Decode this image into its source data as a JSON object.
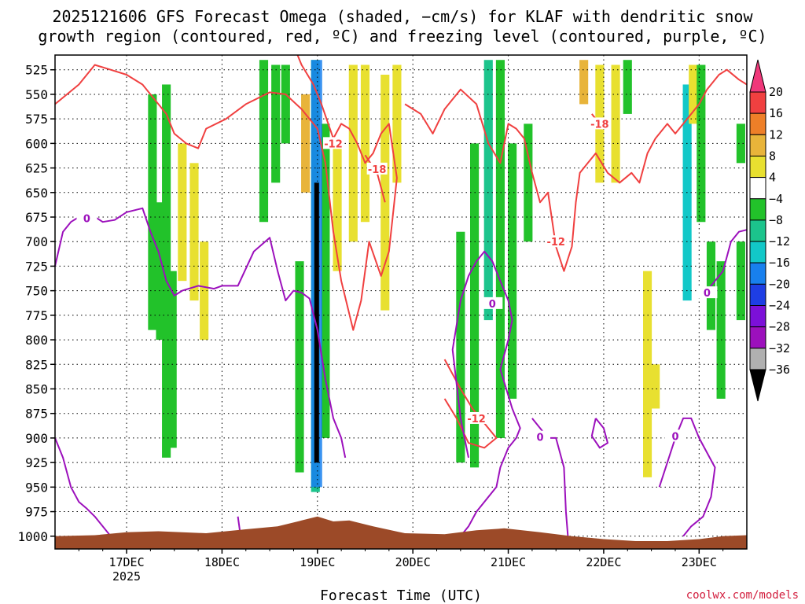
{
  "chart_data": {
    "type": "heatmap",
    "title_lines": [
      "2025121606 GFS Forecast Omega (shaded, −cm/s) for KLAF with dendritic snow",
      "growth region (contoured, red, ºC) and freezing level (contoured, purple, ºC)"
    ],
    "xlabel": "Forecast Time (UTC)",
    "credit": "coolwx.com/models",
    "y_axis": {
      "ticks": [
        525,
        550,
        575,
        600,
        625,
        650,
        675,
        700,
        725,
        750,
        775,
        800,
        825,
        850,
        875,
        900,
        925,
        950,
        975,
        1000
      ],
      "range": [
        510,
        1013
      ]
    },
    "x_axis": {
      "range_hours": [
        -18,
        156
      ],
      "ticks": [
        {
          "hour": 0,
          "label": "17DEC",
          "sub": "2025"
        },
        {
          "hour": 24,
          "label": "18DEC",
          "sub": ""
        },
        {
          "hour": 48,
          "label": "19DEC",
          "sub": ""
        },
        {
          "hour": 72,
          "label": "20DEC",
          "sub": ""
        },
        {
          "hour": 96,
          "label": "21DEC",
          "sub": ""
        },
        {
          "hour": 120,
          "label": "22DEC",
          "sub": ""
        },
        {
          "hour": 144,
          "label": "23DEC",
          "sub": ""
        }
      ]
    },
    "colorbar": {
      "labels": [
        "20",
        "16",
        "12",
        "8",
        "4",
        "−4",
        "−8",
        "−12",
        "−16",
        "−20",
        "−24",
        "−28",
        "−32",
        "−36"
      ],
      "colors": [
        "#f0387a",
        "#f04040",
        "#ee7f28",
        "#e8b43a",
        "#e8e030",
        "#ffffff",
        "#22c22a",
        "#1cc48c",
        "#12c8c8",
        "#1880ee",
        "#1e3ee4",
        "#7c10d8",
        "#9c10bc",
        "#b0b0b0",
        "#000000"
      ]
    },
    "omega_patches": [
      {
        "hour": 6.5,
        "p_top": 550,
        "p_bot": 790,
        "color": "#22c22a"
      },
      {
        "hour": 8.5,
        "p_top": 660,
        "p_bot": 800,
        "color": "#22c22a"
      },
      {
        "hour": 10,
        "p_top": 540,
        "p_bot": 920,
        "color": "#22c22a"
      },
      {
        "hour": 11.5,
        "p_top": 730,
        "p_bot": 910,
        "color": "#22c22a"
      },
      {
        "hour": 14,
        "p_top": 600,
        "p_bot": 740,
        "color": "#e8e030"
      },
      {
        "hour": 17,
        "p_top": 620,
        "p_bot": 760,
        "color": "#e8e030"
      },
      {
        "hour": 19.5,
        "p_top": 700,
        "p_bot": 800,
        "color": "#e8e030"
      },
      {
        "hour": 34.5,
        "p_top": 515,
        "p_bot": 680,
        "color": "#22c22a"
      },
      {
        "hour": 37.5,
        "p_top": 520,
        "p_bot": 640,
        "color": "#22c22a"
      },
      {
        "hour": 40,
        "p_top": 520,
        "p_bot": 600,
        "color": "#22c22a"
      },
      {
        "hour": 43.5,
        "p_top": 720,
        "p_bot": 935,
        "color": "#22c22a"
      },
      {
        "hour": 45,
        "p_top": 550,
        "p_bot": 650,
        "color": "#e8b43a"
      },
      {
        "hour": 47.5,
        "p_top": 515,
        "p_bot": 955,
        "color": "#1cc48c"
      },
      {
        "hour": 50,
        "p_top": 580,
        "p_bot": 900,
        "color": "#22c22a"
      },
      {
        "hour": 53,
        "p_top": 600,
        "p_bot": 730,
        "color": "#e8e030"
      },
      {
        "hour": 57,
        "p_top": 520,
        "p_bot": 700,
        "color": "#e8e030"
      },
      {
        "hour": 60,
        "p_top": 520,
        "p_bot": 680,
        "color": "#e8e030"
      },
      {
        "hour": 65,
        "p_top": 530,
        "p_bot": 770,
        "color": "#e8e030"
      },
      {
        "hour": 68,
        "p_top": 520,
        "p_bot": 640,
        "color": "#e8e030"
      },
      {
        "hour": 84,
        "p_top": 690,
        "p_bot": 925,
        "color": "#22c22a"
      },
      {
        "hour": 87.5,
        "p_top": 600,
        "p_bot": 930,
        "color": "#22c22a"
      },
      {
        "hour": 91,
        "p_top": 515,
        "p_bot": 780,
        "color": "#1cc48c"
      },
      {
        "hour": 94,
        "p_top": 515,
        "p_bot": 900,
        "color": "#22c22a"
      },
      {
        "hour": 97,
        "p_top": 600,
        "p_bot": 860,
        "color": "#22c22a"
      },
      {
        "hour": 101,
        "p_top": 580,
        "p_bot": 700,
        "color": "#22c22a"
      },
      {
        "hour": 115,
        "p_top": 515,
        "p_bot": 560,
        "color": "#e8b43a"
      },
      {
        "hour": 119,
        "p_top": 520,
        "p_bot": 640,
        "color": "#e8e030"
      },
      {
        "hour": 123,
        "p_top": 520,
        "p_bot": 640,
        "color": "#e8e030"
      },
      {
        "hour": 126,
        "p_top": 515,
        "p_bot": 570,
        "color": "#22c22a"
      },
      {
        "hour": 131,
        "p_top": 730,
        "p_bot": 940,
        "color": "#e8e030"
      },
      {
        "hour": 133,
        "p_top": 825,
        "p_bot": 870,
        "color": "#e8e030"
      },
      {
        "hour": 141,
        "p_top": 540,
        "p_bot": 760,
        "color": "#12c8c8"
      },
      {
        "hour": 142.5,
        "p_top": 520,
        "p_bot": 580,
        "color": "#e8e030"
      },
      {
        "hour": 144.5,
        "p_top": 520,
        "p_bot": 680,
        "color": "#22c22a"
      },
      {
        "hour": 147,
        "p_top": 700,
        "p_bot": 790,
        "color": "#22c22a"
      },
      {
        "hour": 149.5,
        "p_top": 720,
        "p_bot": 860,
        "color": "#22c22a"
      },
      {
        "hour": 154.5,
        "p_top": 580,
        "p_bot": 620,
        "color": "#22c22a"
      },
      {
        "hour": 154.5,
        "p_top": 700,
        "p_bot": 780,
        "color": "#22c22a"
      }
    ],
    "core_updraft": {
      "hour": 47.8,
      "p_top": 640,
      "p_bot": 925,
      "color": "#000000"
    },
    "dendritic_contours": [
      {
        "points": [
          [
            -18,
            560
          ],
          [
            -12,
            540
          ],
          [
            -8,
            520
          ],
          [
            -4,
            525
          ],
          [
            0,
            530
          ],
          [
            4,
            540
          ],
          [
            8,
            560
          ],
          [
            10,
            570
          ],
          [
            12,
            590
          ],
          [
            15,
            600
          ],
          [
            18,
            605
          ],
          [
            20,
            585
          ],
          [
            25,
            575
          ],
          [
            30,
            560
          ],
          [
            36,
            548
          ],
          [
            40,
            550
          ],
          [
            44,
            565
          ],
          [
            48,
            585
          ],
          [
            50,
            620
          ],
          [
            52,
            690
          ],
          [
            54,
            740
          ],
          [
            57,
            790
          ],
          [
            59,
            760
          ],
          [
            61,
            700
          ],
          [
            64,
            735
          ],
          [
            66,
            710
          ],
          [
            68,
            635
          ],
          [
            66,
            580
          ],
          [
            64,
            590
          ],
          [
            62,
            610
          ],
          [
            60,
            620
          ],
          [
            58,
            600
          ],
          [
            56,
            585
          ],
          [
            54,
            580
          ],
          [
            52,
            595
          ],
          [
            49,
            560
          ],
          [
            47,
            540
          ],
          [
            44,
            520
          ],
          [
            43,
            510
          ]
        ],
        "label": "-12",
        "label_at": [
          52,
          600
        ]
      },
      {
        "points": [
          [
            60,
            612
          ],
          [
            63,
            630
          ],
          [
            65,
            660
          ]
        ],
        "label": "-18",
        "label_at": [
          63,
          626
        ]
      },
      {
        "points": [
          [
            70,
            560
          ],
          [
            74,
            570
          ],
          [
            77,
            590
          ],
          [
            80,
            565
          ],
          [
            84,
            545
          ],
          [
            88,
            560
          ],
          [
            91,
            600
          ],
          [
            94,
            620
          ],
          [
            96,
            580
          ],
          [
            98,
            585
          ],
          [
            100,
            595
          ],
          [
            102,
            630
          ],
          [
            104,
            660
          ],
          [
            106,
            650
          ],
          [
            108,
            705
          ],
          [
            110,
            730
          ],
          [
            112,
            705
          ],
          [
            113,
            660
          ],
          [
            114,
            630
          ],
          [
            116,
            620
          ],
          [
            118,
            610
          ],
          [
            121,
            630
          ],
          [
            124,
            640
          ],
          [
            127,
            630
          ],
          [
            129,
            640
          ],
          [
            131,
            610
          ],
          [
            133,
            595
          ],
          [
            136,
            580
          ],
          [
            138,
            590
          ],
          [
            141,
            575
          ],
          [
            144,
            560
          ],
          [
            146,
            545
          ],
          [
            149,
            530
          ],
          [
            151,
            525
          ],
          [
            154,
            535
          ],
          [
            156,
            540
          ]
        ],
        "label": "-12",
        "label_at": [
          108,
          700
        ]
      },
      {
        "points": [
          [
            117,
            570
          ],
          [
            119,
            580
          ],
          [
            121,
            575
          ]
        ],
        "label": "-18",
        "label_at": [
          119,
          580
        ]
      },
      {
        "points": [
          [
            80,
            820
          ],
          [
            84,
            850
          ],
          [
            87,
            870
          ],
          [
            90,
            885
          ],
          [
            93,
            900
          ],
          [
            90,
            910
          ],
          [
            86,
            905
          ],
          [
            83,
            880
          ],
          [
            80,
            860
          ]
        ],
        "label": "-12",
        "label_at": [
          88,
          880
        ]
      }
    ],
    "freezing_contours": [
      {
        "points": [
          [
            -18,
            725
          ],
          [
            -16,
            690
          ],
          [
            -14,
            680
          ],
          [
            -12,
            675
          ],
          [
            -9,
            672
          ],
          [
            -6,
            680
          ],
          [
            -3,
            678
          ],
          [
            0,
            670
          ],
          [
            4,
            666
          ],
          [
            6,
            690
          ],
          [
            8,
            710
          ],
          [
            10,
            740
          ],
          [
            12,
            755
          ],
          [
            14,
            750
          ],
          [
            18,
            745
          ],
          [
            22,
            748
          ],
          [
            24,
            745
          ],
          [
            28,
            745
          ],
          [
            32,
            710
          ],
          [
            36,
            696
          ],
          [
            38,
            730
          ],
          [
            40,
            760
          ],
          [
            42,
            750
          ],
          [
            44,
            752
          ],
          [
            46,
            758
          ],
          [
            48,
            790
          ],
          [
            50,
            840
          ],
          [
            52,
            880
          ],
          [
            54,
            900
          ],
          [
            55,
            920
          ]
        ],
        "label": "0",
        "label_at": [
          -10,
          676
        ]
      },
      {
        "points": [
          [
            -18,
            900
          ],
          [
            -16,
            920
          ],
          [
            -14,
            950
          ],
          [
            -12,
            965
          ],
          [
            -10,
            972
          ],
          [
            -8,
            980
          ],
          [
            -6,
            990
          ],
          [
            -4,
            1000
          ]
        ],
        "label": "",
        "label_at": [
          0,
          0
        ]
      },
      {
        "points": [
          [
            28,
            980
          ],
          [
            28.5,
            995
          ]
        ],
        "label": "",
        "label_at": [
          0,
          0
        ]
      },
      {
        "points": [
          [
            86,
            920
          ],
          [
            84,
            880
          ],
          [
            82,
            810
          ],
          [
            84,
            760
          ],
          [
            86,
            735
          ],
          [
            88,
            720
          ],
          [
            90,
            710
          ],
          [
            92,
            720
          ],
          [
            94,
            740
          ],
          [
            96,
            760
          ],
          [
            97,
            780
          ],
          [
            96,
            800
          ],
          [
            94,
            830
          ],
          [
            97,
            870
          ],
          [
            99,
            890
          ],
          [
            98,
            900
          ],
          [
            96,
            910
          ],
          [
            94,
            930
          ],
          [
            93,
            950
          ],
          [
            90,
            965
          ],
          [
            88,
            975
          ],
          [
            86,
            990
          ],
          [
            84,
            1000
          ]
        ],
        "label": "0",
        "label_at": [
          92,
          763
        ]
      },
      {
        "points": [
          [
            102,
            880
          ],
          [
            104,
            890
          ],
          [
            106,
            900
          ],
          [
            108,
            900
          ],
          [
            110,
            930
          ],
          [
            110.5,
            975
          ],
          [
            111,
            1000
          ]
        ],
        "label": "0",
        "label_at": [
          104,
          899
        ]
      },
      {
        "points": [
          [
            118,
            880
          ],
          [
            120,
            890
          ],
          [
            121,
            905
          ],
          [
            119,
            910
          ],
          [
            117,
            898
          ],
          [
            118,
            880
          ]
        ],
        "label": "",
        "label_at": [
          0,
          0
        ]
      },
      {
        "points": [
          [
            134,
            950
          ],
          [
            136,
            925
          ],
          [
            138,
            900
          ],
          [
            140,
            880
          ],
          [
            142,
            880
          ],
          [
            144,
            900
          ],
          [
            146,
            915
          ],
          [
            148,
            930
          ],
          [
            147,
            960
          ],
          [
            145,
            980
          ],
          [
            142,
            990
          ],
          [
            140,
            1000
          ]
        ],
        "label": "0",
        "label_at": [
          138,
          898
        ]
      },
      {
        "points": [
          [
            146,
            750
          ],
          [
            148,
            740
          ],
          [
            150,
            730
          ],
          [
            152,
            700
          ],
          [
            154,
            690
          ],
          [
            156,
            688
          ]
        ],
        "label": "0",
        "label_at": [
          146,
          752
        ]
      }
    ]
  }
}
